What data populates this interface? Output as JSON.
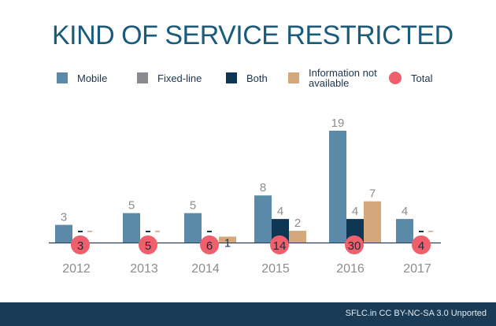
{
  "chart_data": {
    "type": "bar",
    "title": "KIND OF SERVICE RESTRICTED",
    "categories": [
      "2012",
      "2013",
      "2014",
      "2015",
      "2016",
      "2017"
    ],
    "series": [
      {
        "name": "Mobile",
        "color": "#5b8aa8",
        "values": [
          3,
          5,
          5,
          8,
          19,
          4
        ],
        "labels": [
          "3",
          "5",
          "5",
          "8",
          "19",
          "4"
        ]
      },
      {
        "name": "Fixed-line",
        "color": "#8c8a90",
        "values": [
          0,
          0,
          0,
          0,
          0,
          0
        ],
        "labels": []
      },
      {
        "name": "Both",
        "color": "#0e3552",
        "values": [
          0,
          0,
          0,
          4,
          4,
          0
        ],
        "labels": [
          "-",
          "-",
          "-",
          "4",
          "4",
          "-"
        ]
      },
      {
        "name": "Information not available",
        "color": "#d4a87a",
        "values": [
          0,
          0,
          1,
          2,
          7,
          0
        ],
        "labels": [
          "-",
          "-",
          "1",
          "2",
          "7",
          "-"
        ]
      }
    ],
    "totals": {
      "name": "Total",
      "color": "#f0606c",
      "values": [
        3,
        5,
        6,
        14,
        30,
        4
      ]
    },
    "grid": false,
    "legend_position": "top",
    "ylim": [
      0,
      19
    ]
  },
  "footer": {
    "credit": "SFLC.in CC BY-NC-SA 3.0 Unported"
  }
}
